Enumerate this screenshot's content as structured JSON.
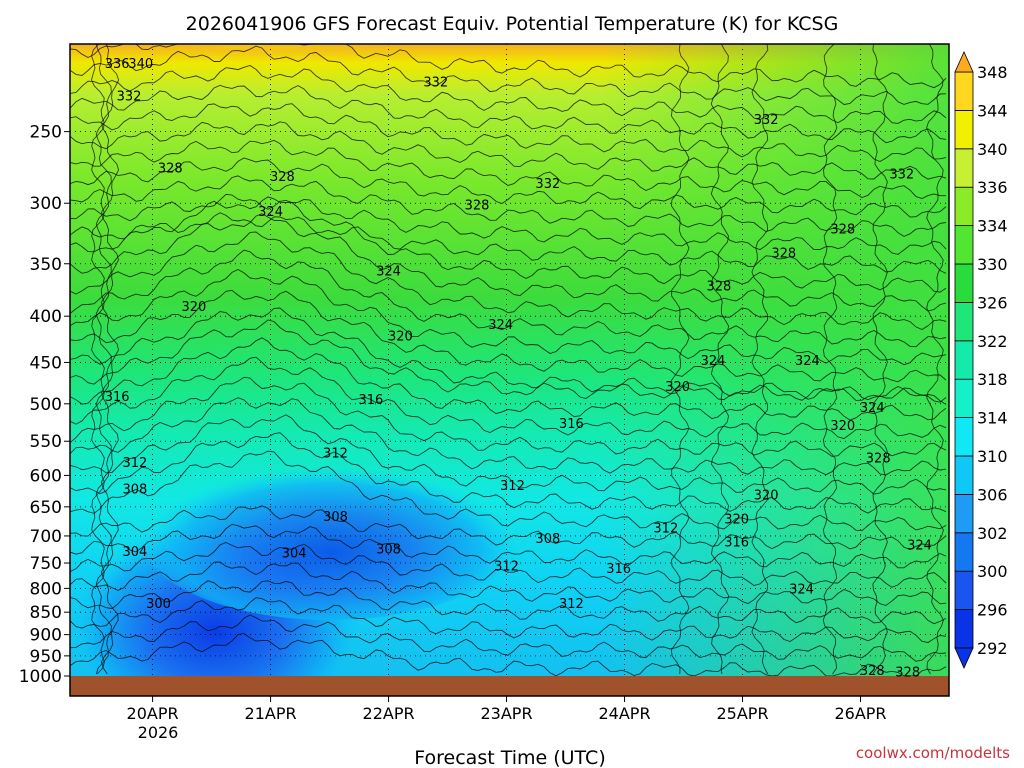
{
  "chart_data": {
    "type": "heatmap",
    "title": "2026041906 GFS Forecast Equiv. Potential Temperature (K) for KCSG",
    "xlabel": "Forecast Time (UTC)",
    "ylabel": "",
    "x_ticks": [
      "20APR",
      "21APR",
      "22APR",
      "23APR",
      "24APR",
      "25APR",
      "26APR"
    ],
    "x_year_label": "2026",
    "y_ticks": [
      250,
      300,
      350,
      400,
      450,
      500,
      550,
      600,
      650,
      700,
      750,
      800,
      850,
      900,
      950,
      1000
    ],
    "ylim": [
      1000,
      200
    ],
    "xlim": [
      -0.7,
      6.75
    ],
    "grid": true,
    "legend": "right",
    "colorbar": {
      "levels": [
        292,
        296,
        300,
        302,
        306,
        310,
        314,
        318,
        322,
        326,
        330,
        334,
        336,
        340,
        344,
        348
      ],
      "colors": [
        "#0a32e6",
        "#1a55f0",
        "#1478f0",
        "#1e9cf5",
        "#10c8f5",
        "#10e8f5",
        "#14f0c8",
        "#14ebaa",
        "#1ee678",
        "#28dc3c",
        "#50e632",
        "#8ceb28",
        "#c8f032",
        "#f0f000",
        "#ffd71e",
        "#ffaa1e"
      ]
    },
    "contour_labels": [
      {
        "text": "336",
        "x": -0.3,
        "p": 210
      },
      {
        "text": "340",
        "x": -0.1,
        "p": 210
      },
      {
        "text": "332",
        "x": -0.2,
        "p": 228
      },
      {
        "text": "332",
        "x": 2.4,
        "p": 220
      },
      {
        "text": "332",
        "x": 5.2,
        "p": 242
      },
      {
        "text": "332",
        "x": 6.35,
        "p": 278
      },
      {
        "text": "332",
        "x": 3.35,
        "p": 285
      },
      {
        "text": "328",
        "x": 0.15,
        "p": 274
      },
      {
        "text": "328",
        "x": 1.1,
        "p": 280
      },
      {
        "text": "328",
        "x": 2.75,
        "p": 301
      },
      {
        "text": "328",
        "x": 5.85,
        "p": 320
      },
      {
        "text": "328",
        "x": 5.35,
        "p": 340
      },
      {
        "text": "328",
        "x": 4.8,
        "p": 370
      },
      {
        "text": "324",
        "x": 1.0,
        "p": 306
      },
      {
        "text": "324",
        "x": 2.0,
        "p": 356
      },
      {
        "text": "324",
        "x": 2.95,
        "p": 408
      },
      {
        "text": "324",
        "x": 4.75,
        "p": 447
      },
      {
        "text": "324",
        "x": 5.55,
        "p": 447
      },
      {
        "text": "324",
        "x": 6.1,
        "p": 504
      },
      {
        "text": "320",
        "x": 0.35,
        "p": 390
      },
      {
        "text": "320",
        "x": 2.1,
        "p": 420
      },
      {
        "text": "320",
        "x": 4.45,
        "p": 478
      },
      {
        "text": "320",
        "x": 5.85,
        "p": 528
      },
      {
        "text": "320",
        "x": 5.2,
        "p": 630
      },
      {
        "text": "320",
        "x": 4.95,
        "p": 670
      },
      {
        "text": "316",
        "x": -0.3,
        "p": 490
      },
      {
        "text": "316",
        "x": 1.85,
        "p": 494
      },
      {
        "text": "316",
        "x": 3.55,
        "p": 525
      },
      {
        "text": "316",
        "x": 4.95,
        "p": 710
      },
      {
        "text": "316",
        "x": 3.95,
        "p": 760
      },
      {
        "text": "312",
        "x": -0.15,
        "p": 580
      },
      {
        "text": "312",
        "x": 1.55,
        "p": 566
      },
      {
        "text": "312",
        "x": 3.05,
        "p": 615
      },
      {
        "text": "312",
        "x": 4.35,
        "p": 685
      },
      {
        "text": "312",
        "x": 3.0,
        "p": 755
      },
      {
        "text": "312",
        "x": 3.55,
        "p": 830
      },
      {
        "text": "308",
        "x": -0.15,
        "p": 620
      },
      {
        "text": "308",
        "x": 1.55,
        "p": 665
      },
      {
        "text": "308",
        "x": 2.0,
        "p": 723
      },
      {
        "text": "308",
        "x": 3.35,
        "p": 704
      },
      {
        "text": "304",
        "x": -0.15,
        "p": 727
      },
      {
        "text": "304",
        "x": 1.2,
        "p": 730
      },
      {
        "text": "300",
        "x": 0.05,
        "p": 830
      },
      {
        "text": "328",
        "x": 6.15,
        "p": 573
      },
      {
        "text": "324",
        "x": 6.5,
        "p": 715
      },
      {
        "text": "324",
        "x": 5.5,
        "p": 800
      },
      {
        "text": "328",
        "x": 6.1,
        "p": 985
      },
      {
        "text": "328",
        "x": 6.4,
        "p": 988
      }
    ]
  },
  "branding": "coolwx.com/modelts"
}
